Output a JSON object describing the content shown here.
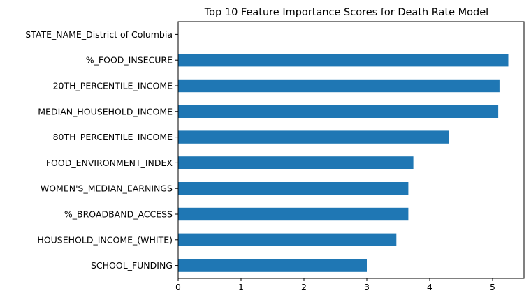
{
  "chart_data": {
    "type": "bar",
    "orientation": "horizontal",
    "title": "Top 10 Feature Importance Scores for Death Rate Model",
    "xlabel": "",
    "ylabel": "",
    "categories": [
      "STATE_NAME_District of Columbia",
      "%_FOOD_INSECURE",
      "20TH_PERCENTILE_INCOME",
      "MEDIAN_HOUSEHOLD_INCOME",
      "80TH_PERCENTILE_INCOME",
      "FOOD_ENVIRONMENT_INDEX",
      "WOMEN'S_MEDIAN_EARNINGS",
      "%_BROADBAND_ACCESS",
      "HOUSEHOLD_INCOME_(WHITE)",
      "SCHOOL_FUNDING"
    ],
    "values": [
      0.0,
      5.25,
      5.11,
      5.09,
      4.31,
      3.74,
      3.66,
      3.66,
      3.47,
      3.0
    ],
    "xlim": [
      0,
      5.5
    ],
    "xticks": [
      0,
      1,
      2,
      3,
      4,
      5
    ],
    "bar_color": "#1f77b4",
    "grid": false,
    "legend": "none"
  }
}
